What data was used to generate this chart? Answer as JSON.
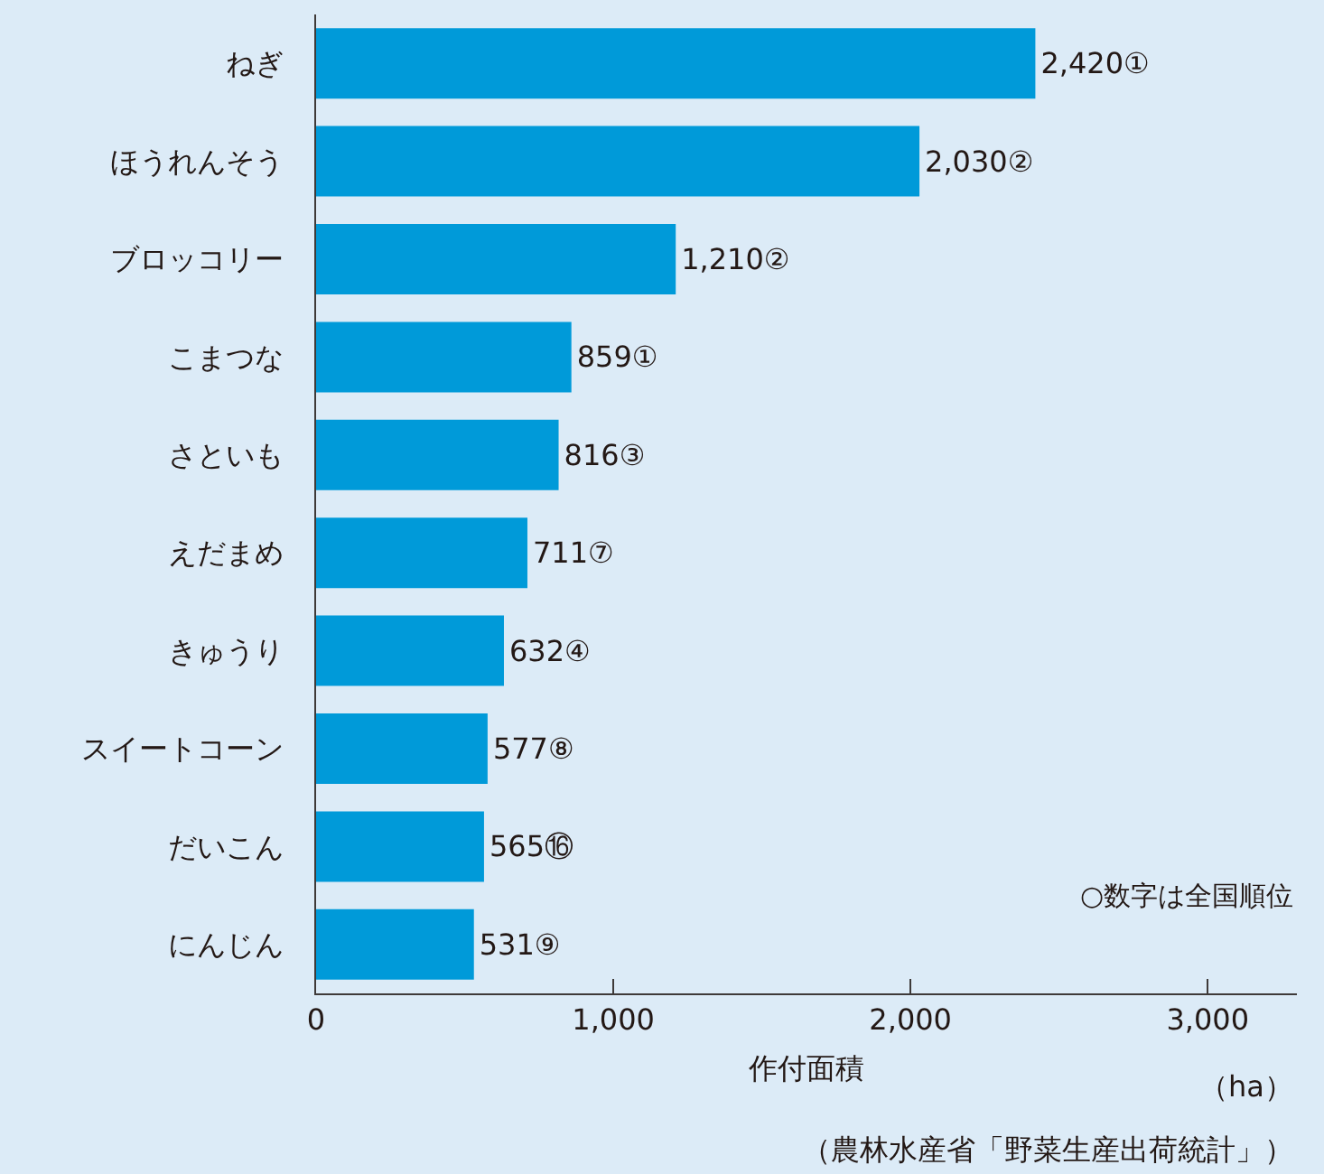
{
  "chart_data": {
    "type": "bar",
    "orientation": "horizontal",
    "categories": [
      "ねぎ",
      "ほうれんそう",
      "ブロッコリー",
      "こまつな",
      "さといも",
      "えだまめ",
      "きゅうり",
      "スイートコーン",
      "だいこん",
      "にんじん"
    ],
    "values": [
      2420,
      2030,
      1210,
      859,
      816,
      711,
      632,
      577,
      565,
      531
    ],
    "value_labels": [
      "2,420①",
      "2,030②",
      "1,210②",
      "859①",
      "816③",
      "711⑦",
      "632④",
      "577⑧",
      "565⑯",
      "531⑨"
    ],
    "color": "#009ad9",
    "xlim": [
      0,
      3300
    ],
    "xticks": [
      0,
      {
        "value": 1000,
        "label": "1,000"
      },
      {
        "value": 2000,
        "label": "2,000"
      },
      {
        "value": 3000,
        "label": "3,000"
      }
    ],
    "xlabel": "作付面積",
    "grid": false,
    "legend": false,
    "annotations": [
      "○数字は全国順位",
      "（ha）",
      "（農林水産省「野菜生産出荷統計」）"
    ]
  }
}
